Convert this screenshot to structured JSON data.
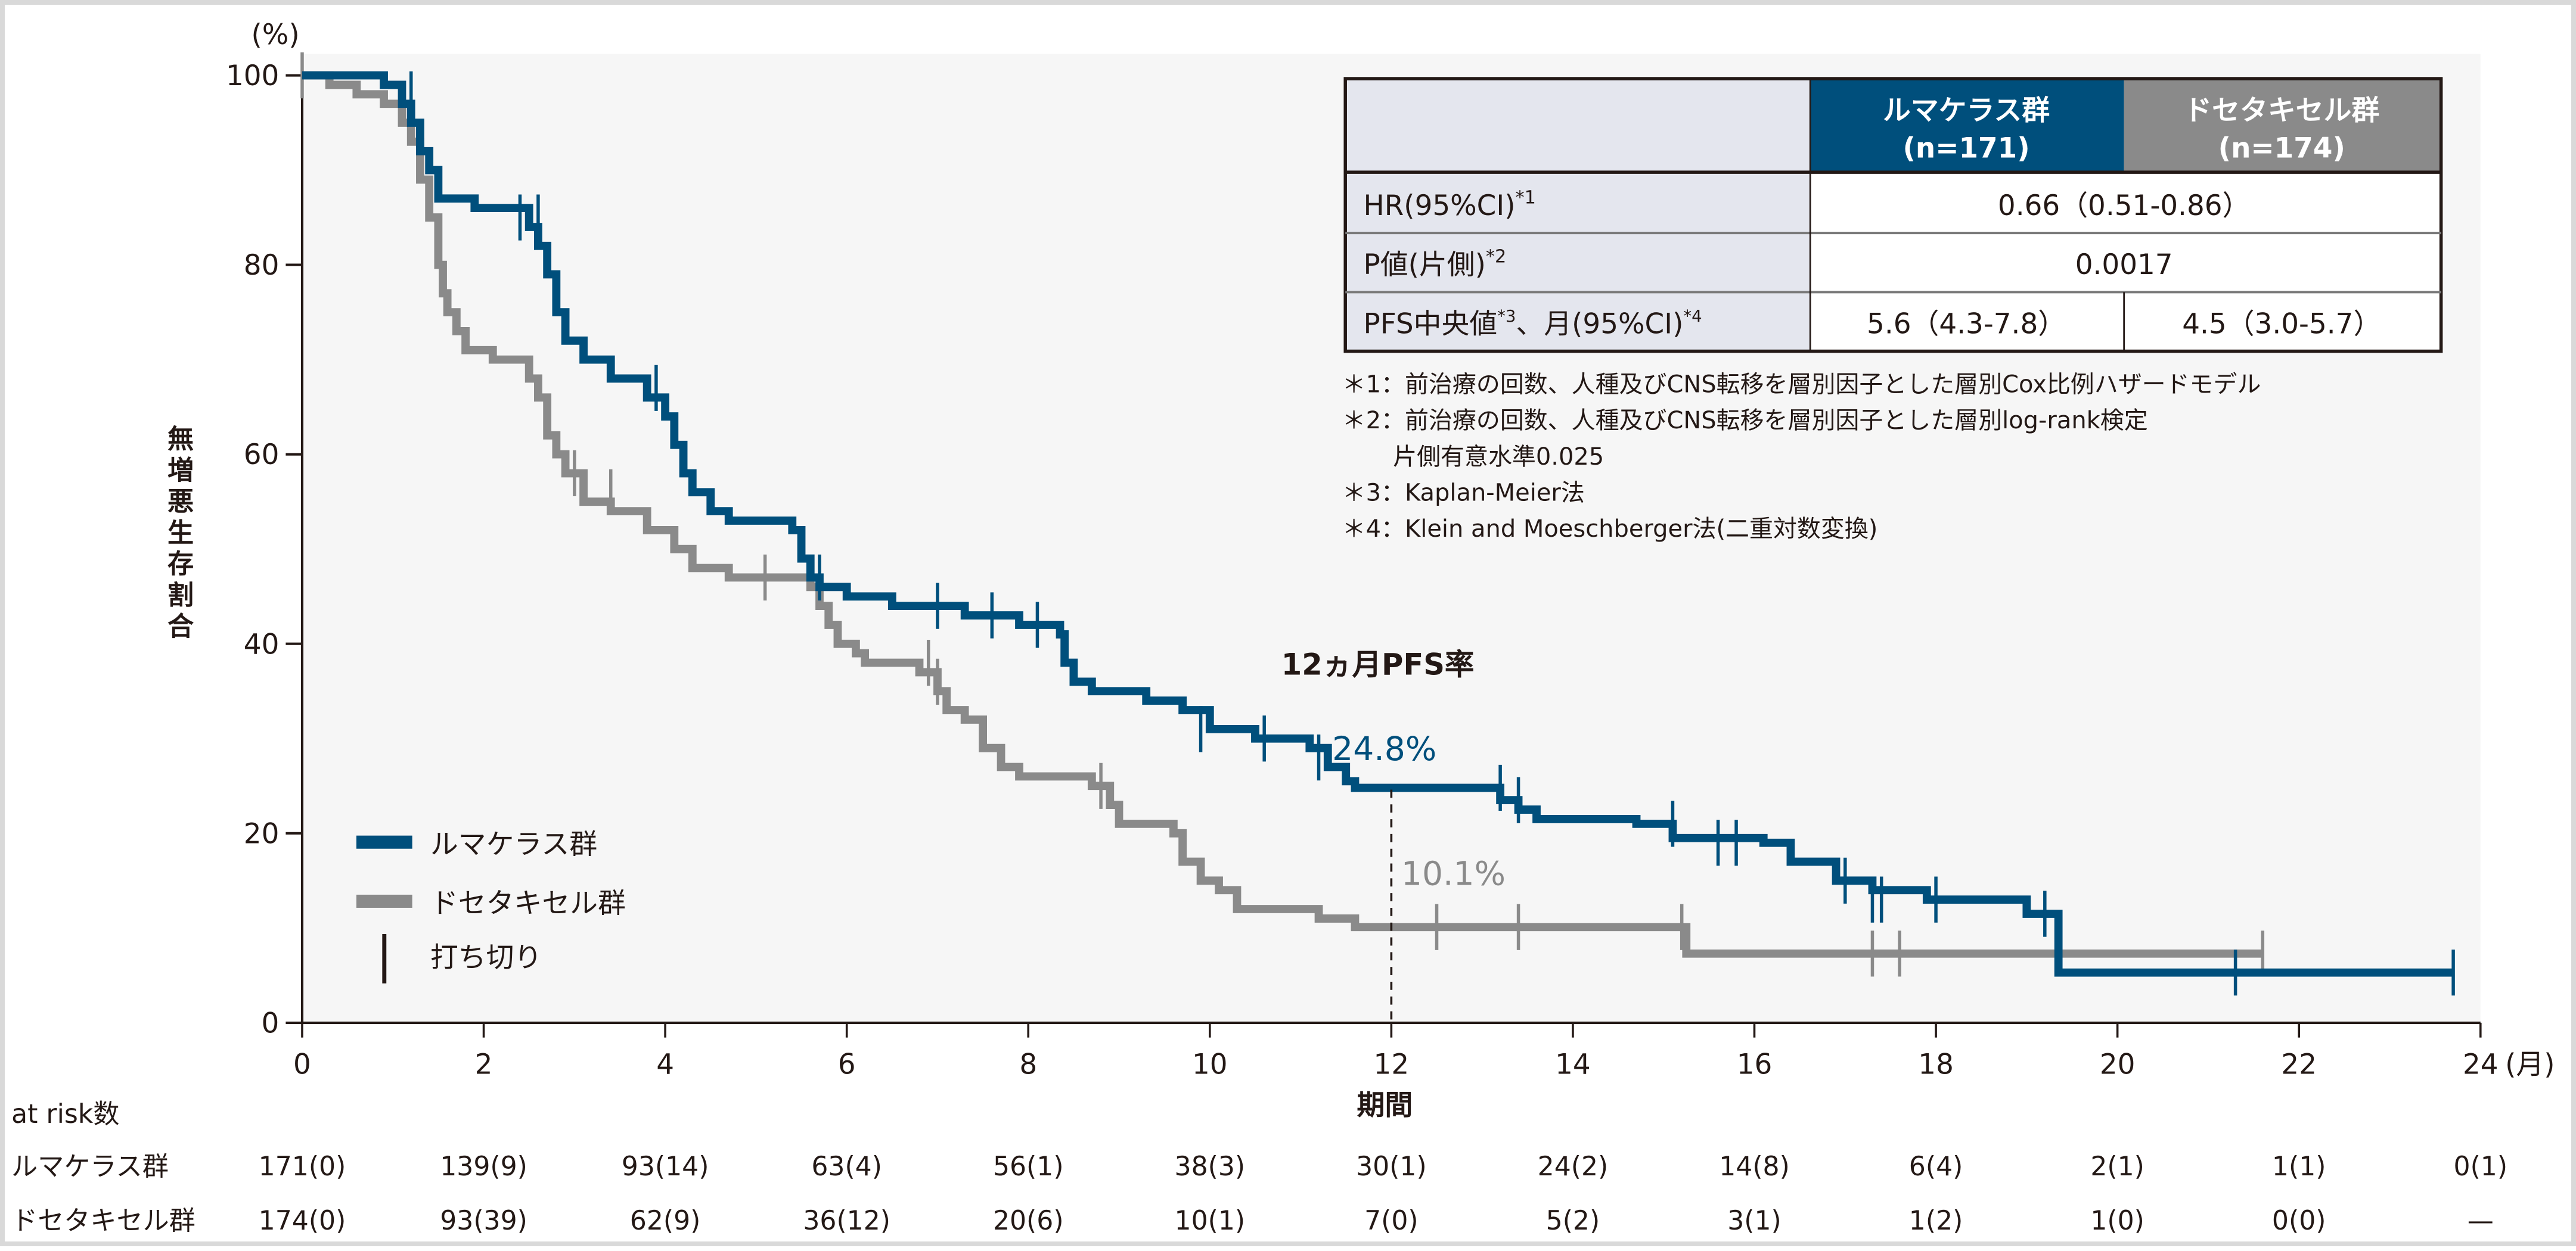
{
  "colors": {
    "lumakras": "#004f7c",
    "docetaxel": "#8a8a8a",
    "plot_bg": "#f6f6f6",
    "axis": "#231815",
    "table_label_bg": "#e4e6ee"
  },
  "chart_data": {
    "type": "line",
    "subtype": "kaplan-meier",
    "title": "",
    "xlabel": "期間",
    "x_unit": "(月)",
    "ylabel": "無増悪生存割合",
    "y_unit": "(%)",
    "xlim": [
      0,
      24
    ],
    "ylim": [
      0,
      100
    ],
    "x_ticks": [
      0,
      2,
      4,
      6,
      8,
      10,
      12,
      14,
      16,
      18,
      20,
      22,
      24
    ],
    "y_ticks": [
      0,
      20,
      40,
      60,
      80,
      100
    ],
    "grid": false,
    "legend_position": "lower-left",
    "series": [
      {
        "name": "ルマケラス群",
        "color": "#004f7c",
        "steps": [
          [
            0,
            100
          ],
          [
            0.9,
            99
          ],
          [
            1.1,
            97
          ],
          [
            1.2,
            95
          ],
          [
            1.3,
            92
          ],
          [
            1.4,
            90
          ],
          [
            1.5,
            87
          ],
          [
            1.9,
            86
          ],
          [
            2.5,
            84
          ],
          [
            2.6,
            82
          ],
          [
            2.7,
            79
          ],
          [
            2.8,
            75
          ],
          [
            2.9,
            72
          ],
          [
            3.1,
            70
          ],
          [
            3.4,
            68
          ],
          [
            3.8,
            66
          ],
          [
            4.0,
            64
          ],
          [
            4.1,
            61
          ],
          [
            4.2,
            58
          ],
          [
            4.3,
            56
          ],
          [
            4.5,
            54
          ],
          [
            4.7,
            53
          ],
          [
            5.4,
            52
          ],
          [
            5.5,
            49
          ],
          [
            5.6,
            47
          ],
          [
            5.7,
            46
          ],
          [
            6.0,
            45
          ],
          [
            6.5,
            44
          ],
          [
            7.3,
            43
          ],
          [
            7.9,
            42
          ],
          [
            8.35,
            41
          ],
          [
            8.4,
            38
          ],
          [
            8.5,
            36
          ],
          [
            8.7,
            35
          ],
          [
            9.3,
            34
          ],
          [
            9.7,
            33
          ],
          [
            10.0,
            31
          ],
          [
            10.5,
            30
          ],
          [
            11.1,
            29
          ],
          [
            11.3,
            27
          ],
          [
            11.5,
            25.5
          ],
          [
            11.6,
            24.8
          ],
          [
            13.2,
            23.5
          ],
          [
            13.4,
            22.5
          ],
          [
            13.6,
            21.5
          ],
          [
            14.7,
            21
          ],
          [
            15.1,
            19.5
          ],
          [
            16.1,
            19
          ],
          [
            16.4,
            17
          ],
          [
            16.9,
            15
          ],
          [
            17.3,
            14
          ],
          [
            17.9,
            13
          ],
          [
            19.0,
            11.5
          ],
          [
            19.35,
            5.3
          ],
          [
            23.7,
            5.3
          ]
        ],
        "censored": [
          [
            1.2,
            98
          ],
          [
            2.4,
            85
          ],
          [
            2.6,
            85
          ],
          [
            3.9,
            67
          ],
          [
            5.7,
            47
          ],
          [
            7.0,
            44
          ],
          [
            7.6,
            43
          ],
          [
            8.1,
            42
          ],
          [
            9.9,
            31
          ],
          [
            10.6,
            30
          ],
          [
            11.2,
            28
          ],
          [
            13.2,
            24.8
          ],
          [
            13.4,
            23.5
          ],
          [
            15.1,
            21
          ],
          [
            15.6,
            19
          ],
          [
            15.8,
            19
          ],
          [
            17.0,
            15
          ],
          [
            17.3,
            13
          ],
          [
            17.4,
            13
          ],
          [
            18.0,
            13
          ],
          [
            19.2,
            11.5
          ],
          [
            21.3,
            5.3
          ],
          [
            23.7,
            5.3
          ]
        ]
      },
      {
        "name": "ドセタキセル群",
        "color": "#8a8a8a",
        "steps": [
          [
            0,
            100
          ],
          [
            0.3,
            99
          ],
          [
            0.6,
            98
          ],
          [
            0.9,
            97
          ],
          [
            1.1,
            95
          ],
          [
            1.2,
            93
          ],
          [
            1.3,
            89
          ],
          [
            1.4,
            85
          ],
          [
            1.5,
            80
          ],
          [
            1.55,
            77
          ],
          [
            1.6,
            75
          ],
          [
            1.7,
            73
          ],
          [
            1.8,
            71
          ],
          [
            2.1,
            70
          ],
          [
            2.5,
            68
          ],
          [
            2.6,
            66
          ],
          [
            2.7,
            62
          ],
          [
            2.8,
            60
          ],
          [
            2.9,
            58
          ],
          [
            3.1,
            55
          ],
          [
            3.4,
            54
          ],
          [
            3.8,
            52
          ],
          [
            4.1,
            50
          ],
          [
            4.3,
            48
          ],
          [
            4.7,
            47
          ],
          [
            5.6,
            46
          ],
          [
            5.7,
            44
          ],
          [
            5.8,
            42
          ],
          [
            5.9,
            40
          ],
          [
            6.1,
            39
          ],
          [
            6.2,
            38
          ],
          [
            6.8,
            37
          ],
          [
            7.0,
            35
          ],
          [
            7.1,
            33
          ],
          [
            7.3,
            32
          ],
          [
            7.5,
            29
          ],
          [
            7.7,
            27
          ],
          [
            7.9,
            26
          ],
          [
            8.7,
            25
          ],
          [
            8.9,
            23
          ],
          [
            9.0,
            21
          ],
          [
            9.6,
            20
          ],
          [
            9.7,
            17
          ],
          [
            9.9,
            15
          ],
          [
            10.1,
            14
          ],
          [
            10.3,
            12
          ],
          [
            11.2,
            11
          ],
          [
            11.6,
            10.1
          ],
          [
            15.25,
            7.3
          ],
          [
            21.6,
            7.3
          ]
        ],
        "censored": [
          [
            0.0,
            100
          ],
          [
            1.5,
            82
          ],
          [
            3.0,
            58
          ],
          [
            3.4,
            56
          ],
          [
            5.1,
            47
          ],
          [
            6.9,
            38
          ],
          [
            7.0,
            36
          ],
          [
            8.8,
            25
          ],
          [
            12.5,
            10.1
          ],
          [
            13.4,
            10.1
          ],
          [
            15.2,
            10.1
          ],
          [
            17.3,
            7.3
          ],
          [
            17.6,
            7.3
          ],
          [
            21.6,
            7.3
          ]
        ]
      }
    ],
    "annotations": [
      {
        "text": "12ヵ月PFS率",
        "x": 12,
        "y": 40
      },
      {
        "text": "24.8%",
        "x": 12,
        "y": 24.8,
        "series": "ルマケラス群"
      },
      {
        "text": "10.1%",
        "x": 12,
        "y": 10.1,
        "series": "ドセタキセル群"
      }
    ],
    "at_risk": {
      "label": "at risk数",
      "times": [
        0,
        2,
        4,
        6,
        8,
        10,
        12,
        14,
        16,
        18,
        20,
        22,
        24
      ],
      "rows": [
        {
          "name": "ルマケラス群",
          "values": [
            "171(0)",
            "139(9)",
            "93(14)",
            "63(4)",
            "56(1)",
            "38(3)",
            "30(1)",
            "24(2)",
            "14(8)",
            "6(4)",
            "2(1)",
            "1(1)",
            "0(1)"
          ]
        },
        {
          "name": "ドセタキセル群",
          "values": [
            "174(0)",
            "93(39)",
            "62(9)",
            "36(12)",
            "20(6)",
            "10(1)",
            "7(0)",
            "5(2)",
            "3(1)",
            "1(2)",
            "1(0)",
            "0(0)",
            "—"
          ]
        }
      ]
    },
    "summary_table": {
      "columns": [
        "",
        "ルマケラス群 (n=171)",
        "ドセタキセル群 (n=174)"
      ],
      "rows": [
        [
          "HR(95%CI)*1",
          "0.66 (0.51-0.86)"
        ],
        [
          "P値(片側)*2",
          "0.0017"
        ],
        [
          "PFS中央値*3、月(95%CI)*4",
          "5.6 (4.3-7.8)",
          "4.5 (3.0-5.7)"
        ]
      ]
    }
  },
  "axis": {
    "y_unit": "(%)",
    "y_label_chars": [
      "無",
      "増",
      "悪",
      "生",
      "存",
      "割",
      "合"
    ],
    "y_ticks": [
      "0",
      "20",
      "40",
      "60",
      "80",
      "100"
    ],
    "x_ticks": [
      "0",
      "2",
      "4",
      "6",
      "8",
      "10",
      "12",
      "14",
      "16",
      "18",
      "20",
      "22",
      "24"
    ],
    "x_unit": "(月)",
    "x_label": "期間"
  },
  "legend": {
    "items": [
      {
        "label": "ルマケラス群"
      },
      {
        "label": "ドセタキセル群"
      },
      {
        "label": "打ち切り"
      }
    ]
  },
  "annotation": {
    "title": "12ヵ月PFS率",
    "lumakras_value": "24.8%",
    "docetaxel_value": "10.1%"
  },
  "table": {
    "header": {
      "col1_line1": "ルマケラス群",
      "col1_line2": "(n=171)",
      "col2_line1": "ドセタキセル群",
      "col2_line2": "(n=174)"
    },
    "rows": {
      "hr_label": "HR(95%CI)",
      "hr_sup": "*1",
      "hr_value": "0.66（0.51-0.86）",
      "p_label": "P値(片側)",
      "p_sup": "*2",
      "p_value": "0.0017",
      "pfs_label_a": "PFS中央値",
      "pfs_sup_a": "*3",
      "pfs_label_b": "、月(95%CI)",
      "pfs_sup_b": "*4",
      "pfs_lumakras": "5.6（4.3-7.8）",
      "pfs_docetaxel": "4.5（3.0-5.7）"
    }
  },
  "footnotes": {
    "n1": "＊1：前治療の回数、人種及びCNS転移を層別因子とした層別Cox比例ハザードモデル",
    "n2": "＊2：前治療の回数、人種及びCNS転移を層別因子とした層別log-rank検定",
    "n2b": "片側有意水準0.025",
    "n3": "＊3：Kaplan-Meier法",
    "n4": "＊4：Klein and Moeschberger法(二重対数変換)"
  },
  "at_risk": {
    "label": "at risk数",
    "row1_name": "ルマケラス群",
    "row2_name": "ドセタキセル群",
    "row1": [
      "171(0)",
      "139(9)",
      "93(14)",
      "63(4)",
      "56(1)",
      "38(3)",
      "30(1)",
      "24(2)",
      "14(8)",
      "6(4)",
      "2(1)",
      "1(1)",
      "0(1)"
    ],
    "row2": [
      "174(0)",
      "93(39)",
      "62(9)",
      "36(12)",
      "20(6)",
      "10(1)",
      "7(0)",
      "5(2)",
      "3(1)",
      "1(2)",
      "1(0)",
      "0(0)",
      "—"
    ]
  }
}
